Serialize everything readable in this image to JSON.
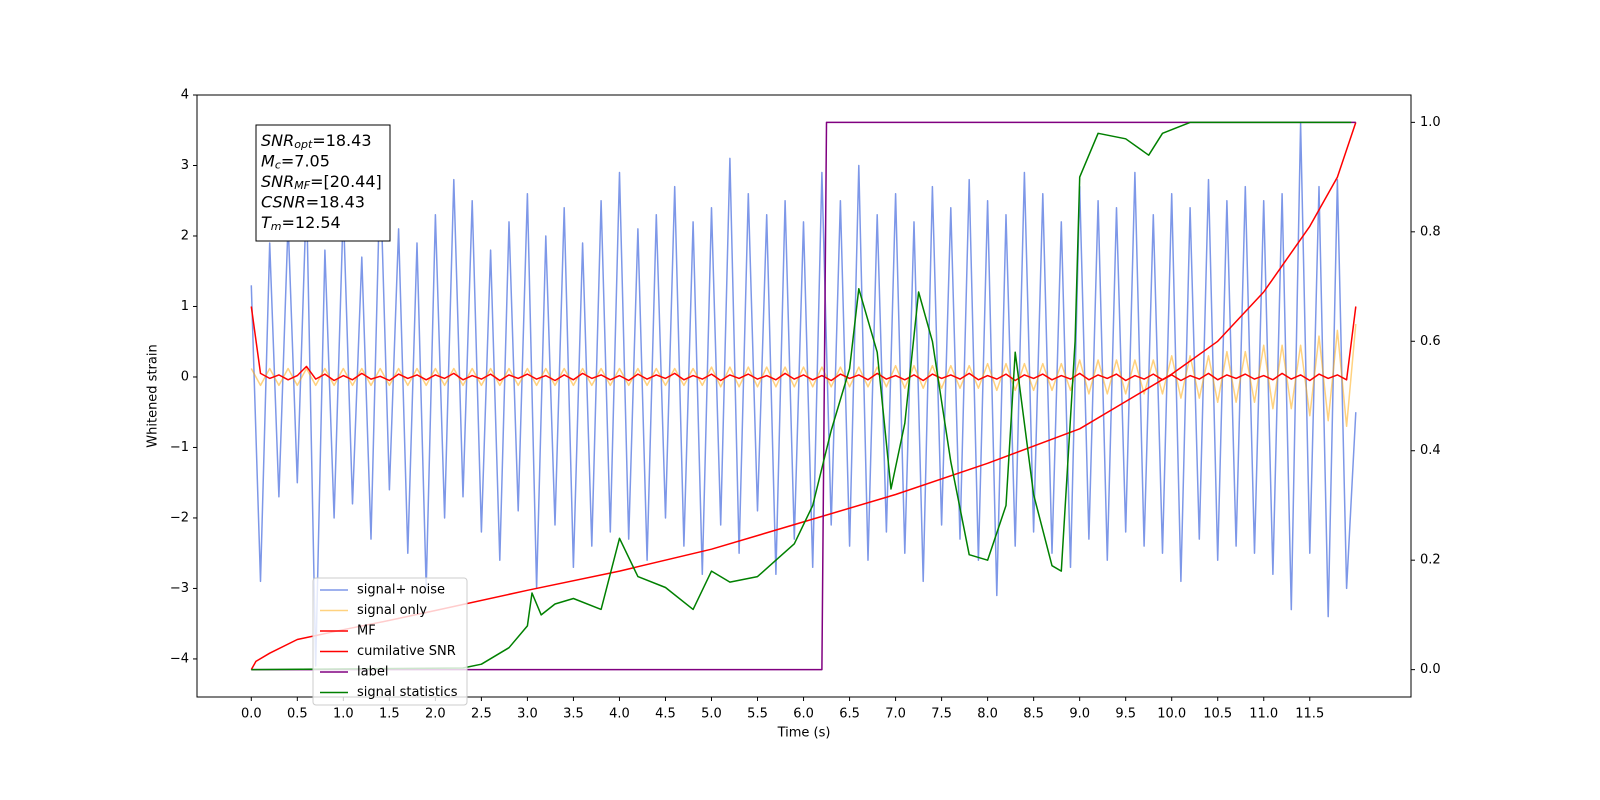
{
  "chart_data": {
    "type": "line",
    "xlabel": "Time (s)",
    "ylabel": "Whitened strain",
    "xlim": [
      -0.59,
      12.6
    ],
    "ylim": [
      -4.54,
      4.0
    ],
    "y2lim": [
      -0.05,
      1.05
    ],
    "xticks": [
      {
        "value": 0,
        "label": "0.0"
      },
      {
        "value": 0.5,
        "label": "0.5"
      },
      {
        "value": 1,
        "label": "1.0"
      },
      {
        "value": 1.5,
        "label": "1.5"
      },
      {
        "value": 2,
        "label": "2.0"
      },
      {
        "value": 2.5,
        "label": "2.5"
      },
      {
        "value": 3,
        "label": "3.0"
      },
      {
        "value": 3.5,
        "label": "3.5"
      },
      {
        "value": 4,
        "label": "4.0"
      },
      {
        "value": 4.5,
        "label": "4.5"
      },
      {
        "value": 5,
        "label": "5.0"
      },
      {
        "value": 5.5,
        "label": "5.5"
      },
      {
        "value": 6,
        "label": "6.0"
      },
      {
        "value": 6.5,
        "label": "6.5"
      },
      {
        "value": 7,
        "label": "7.0"
      },
      {
        "value": 7.5,
        "label": "7.5"
      },
      {
        "value": 8,
        "label": "8.0"
      },
      {
        "value": 8.5,
        "label": "8.5"
      },
      {
        "value": 9,
        "label": "9.0"
      },
      {
        "value": 9.5,
        "label": "9.5"
      },
      {
        "value": 10,
        "label": "10.0"
      },
      {
        "value": 10.5,
        "label": "10.5"
      },
      {
        "value": 11,
        "label": "11.0"
      },
      {
        "value": 11.5,
        "label": "11.5"
      }
    ],
    "yticks": [
      {
        "value": -4,
        "label": "−4"
      },
      {
        "value": -3,
        "label": "−3"
      },
      {
        "value": -2,
        "label": "−2"
      },
      {
        "value": -1,
        "label": "−1"
      },
      0,
      1,
      2,
      3,
      4
    ],
    "y2ticks": [
      {
        "value": 0,
        "label": "0.0"
      },
      {
        "value": 0.2,
        "label": "0.2"
      },
      {
        "value": 0.4,
        "label": "0.4"
      },
      {
        "value": 0.6,
        "label": "0.6"
      },
      {
        "value": 0.8,
        "label": "0.8"
      },
      {
        "value": 1,
        "label": "1.0"
      }
    ],
    "legend": "lower left",
    "grid": false,
    "annotations": [
      {
        "symbol": "SNR",
        "subscript": "opt",
        "text": "=18.43"
      },
      {
        "symbol": "M",
        "subscript": "c",
        "text": "=7.05"
      },
      {
        "symbol": "SNR",
        "subscript": "MF",
        "text": "=[20.44]"
      },
      {
        "symbol": "CSNR",
        "text": "=18.43"
      },
      {
        "symbol": "T",
        "subscript": "m",
        "text": "=12.54"
      }
    ],
    "x": [
      0,
      0.1,
      0.2,
      0.3,
      0.4,
      0.5,
      0.6,
      0.7,
      0.8,
      0.9,
      1,
      1.1,
      1.2,
      1.3,
      1.4,
      1.5,
      1.6,
      1.7,
      1.8,
      1.9,
      2,
      2.1,
      2.2,
      2.3,
      2.4,
      2.5,
      2.6,
      2.7,
      2.8,
      2.9,
      3,
      3.1,
      3.2,
      3.3,
      3.4,
      3.5,
      3.6,
      3.7,
      3.8,
      3.9,
      4,
      4.1,
      4.2,
      4.3,
      4.4,
      4.5,
      4.6,
      4.7,
      4.8,
      4.9,
      5,
      5.1,
      5.2,
      5.3,
      5.4,
      5.5,
      5.6,
      5.7,
      5.8,
      5.9,
      6,
      6.1,
      6.2,
      6.3,
      6.4,
      6.5,
      6.6,
      6.7,
      6.8,
      6.9,
      7,
      7.1,
      7.2,
      7.3,
      7.4,
      7.5,
      7.6,
      7.7,
      7.8,
      7.9,
      8,
      8.1,
      8.2,
      8.3,
      8.4,
      8.5,
      8.6,
      8.7,
      8.8,
      8.9,
      9,
      9.1,
      9.2,
      9.3,
      9.4,
      9.5,
      9.6,
      9.7,
      9.8,
      9.9,
      10,
      10.1,
      10.2,
      10.3,
      10.4,
      10.5,
      10.6,
      10.7,
      10.8,
      10.9,
      11,
      11.1,
      11.2,
      11.3,
      11.4,
      11.5,
      11.6,
      11.7,
      11.8,
      11.9,
      12
    ],
    "series": [
      {
        "name": "signal+ noise",
        "color": "#6f8ce6",
        "opacity": 0.9,
        "values": [
          1.3,
          -2.9,
          1.9,
          -1.7,
          2.2,
          -1.5,
          2.6,
          -4.1,
          1.8,
          -2.0,
          2.4,
          -1.8,
          1.7,
          -2.3,
          2.9,
          -1.6,
          2.1,
          -2.5,
          1.9,
          -3.0,
          2.3,
          -2.0,
          2.8,
          -1.7,
          2.5,
          -2.2,
          1.8,
          -2.6,
          2.2,
          -1.9,
          2.6,
          -3.0,
          2.0,
          -2.1,
          2.4,
          -2.7,
          1.9,
          -2.4,
          2.5,
          -2.2,
          2.9,
          -2.3,
          2.1,
          -2.6,
          2.3,
          -2.0,
          2.7,
          -2.4,
          2.2,
          -2.8,
          2.4,
          -2.1,
          3.1,
          -2.5,
          2.6,
          -1.9,
          2.3,
          -2.8,
          2.5,
          -2.3,
          2.2,
          -2.7,
          2.9,
          -2.1,
          2.5,
          -2.4,
          3.0,
          -2.6,
          2.3,
          -2.2,
          2.6,
          -2.5,
          2.2,
          -2.9,
          2.7,
          -2.1,
          2.4,
          -2.3,
          2.8,
          -2.6,
          2.5,
          -3.1,
          2.3,
          -2.4,
          2.9,
          -2.2,
          2.6,
          -2.5,
          2.2,
          -2.7,
          2.7,
          -2.3,
          2.5,
          -2.6,
          2.4,
          -2.2,
          2.9,
          -2.4,
          2.3,
          -2.5,
          2.6,
          -2.9,
          2.4,
          -2.3,
          2.8,
          -2.6,
          2.5,
          -2.4,
          2.7,
          -2.5,
          2.5,
          -2.8,
          2.6,
          -3.3,
          3.6,
          -2.5,
          2.7,
          -3.4,
          2.8,
          -3.0,
          -0.5
        ]
      },
      {
        "name": "signal only",
        "color": "#ffa500",
        "opacity": 0.5,
        "values": [
          0.12,
          -0.12,
          0.12,
          -0.12,
          0.12,
          -0.12,
          0.12,
          -0.12,
          0.12,
          -0.12,
          0.12,
          -0.12,
          0.12,
          -0.12,
          0.12,
          -0.12,
          0.12,
          -0.12,
          0.12,
          -0.12,
          0.12,
          -0.12,
          0.12,
          -0.12,
          0.12,
          -0.12,
          0.12,
          -0.12,
          0.12,
          -0.12,
          0.12,
          -0.12,
          0.12,
          -0.12,
          0.12,
          -0.12,
          0.12,
          -0.12,
          0.12,
          -0.12,
          0.12,
          -0.12,
          0.12,
          -0.12,
          0.12,
          -0.12,
          0.12,
          -0.12,
          0.12,
          -0.12,
          0.14,
          -0.14,
          0.14,
          -0.14,
          0.14,
          -0.14,
          0.14,
          -0.14,
          0.14,
          -0.14,
          0.14,
          -0.14,
          0.14,
          -0.14,
          0.14,
          -0.14,
          0.14,
          -0.14,
          0.14,
          -0.14,
          0.16,
          -0.16,
          0.16,
          -0.16,
          0.16,
          -0.16,
          0.16,
          -0.16,
          0.16,
          -0.16,
          0.19,
          -0.19,
          0.19,
          -0.19,
          0.19,
          -0.19,
          0.19,
          -0.19,
          0.19,
          -0.19,
          0.24,
          -0.24,
          0.24,
          -0.24,
          0.24,
          -0.24,
          0.24,
          -0.24,
          0.24,
          -0.24,
          0.3,
          -0.3,
          0.3,
          -0.3,
          0.3,
          -0.36,
          0.36,
          -0.36,
          0.36,
          -0.36,
          0.45,
          -0.45,
          0.45,
          -0.45,
          0.45,
          -0.55,
          0.58,
          -0.62,
          0.66,
          -0.7,
          0.75
        ]
      },
      {
        "name": "MF",
        "color": "#ff0000",
        "values": [
          1.0,
          0.05,
          -0.02,
          0.03,
          -0.04,
          0.02,
          0.15,
          -0.03,
          0.04,
          -0.05,
          0.02,
          -0.04,
          0.05,
          -0.03,
          0.01,
          -0.05,
          0.04,
          -0.02,
          0.03,
          -0.04,
          0.03,
          -0.02,
          0.05,
          -0.04,
          0.02,
          -0.03,
          0.04,
          -0.05,
          0.03,
          -0.02,
          0.04,
          -0.03,
          0.02,
          -0.05,
          0.03,
          -0.04,
          0.05,
          -0.02,
          0.03,
          -0.04,
          0.02,
          -0.05,
          0.04,
          -0.03,
          0.03,
          -0.02,
          0.05,
          -0.04,
          0.02,
          -0.03,
          0.04,
          -0.05,
          0.03,
          -0.02,
          0.04,
          -0.03,
          0.02,
          -0.04,
          0.05,
          -0.03,
          0.03,
          -0.04,
          0.02,
          -0.05,
          0.04,
          -0.02,
          0.03,
          -0.04,
          0.05,
          -0.03,
          0.02,
          -0.04,
          0.03,
          -0.05,
          0.04,
          -0.02,
          0.03,
          -0.03,
          0.05,
          -0.04,
          0.02,
          -0.03,
          0.04,
          -0.05,
          0.03,
          -0.02,
          0.04,
          -0.04,
          0.02,
          -0.03,
          0.05,
          -0.04,
          0.03,
          -0.02,
          0.04,
          -0.05,
          0.02,
          -0.03,
          0.04,
          -0.04,
          0.03,
          -0.05,
          0.02,
          -0.03,
          0.05,
          -0.04,
          0.03,
          -0.02,
          0.04,
          -0.03,
          0.02,
          -0.04,
          0.05,
          -0.03,
          0.03,
          -0.05,
          0.04,
          -0.02,
          0.03,
          -0.04,
          1.0
        ]
      },
      {
        "name": "cumilative SNR",
        "color": "#ff0000",
        "axis": "y2",
        "x": [
          0,
          0.05,
          0.2,
          0.5,
          1,
          1.5,
          2,
          3,
          4,
          5,
          6,
          7,
          8,
          9,
          9.5,
          10,
          10.5,
          11,
          11.5,
          11.8,
          12
        ],
        "values": [
          0,
          0.015,
          0.03,
          0.055,
          0.073,
          0.09,
          0.108,
          0.145,
          0.18,
          0.22,
          0.27,
          0.32,
          0.377,
          0.44,
          0.49,
          0.54,
          0.6,
          0.69,
          0.81,
          0.9,
          1.0
        ]
      },
      {
        "name": "label",
        "color": "#800080",
        "axis": "y2",
        "x": [
          0,
          6.2,
          6.25,
          12
        ],
        "values": [
          0,
          0,
          1,
          1
        ]
      },
      {
        "name": "signal statistics",
        "color": "#008000",
        "axis": "y2",
        "x": [
          0,
          2.3,
          2.5,
          2.8,
          3.0,
          3.05,
          3.15,
          3.3,
          3.5,
          3.8,
          4.0,
          4.2,
          4.5,
          4.8,
          5.0,
          5.2,
          5.5,
          5.7,
          5.9,
          6.1,
          6.3,
          6.5,
          6.6,
          6.8,
          6.95,
          7.1,
          7.25,
          7.4,
          7.6,
          7.8,
          8.0,
          8.2,
          8.3,
          8.5,
          8.7,
          8.8,
          8.95,
          9.0,
          9.2,
          9.5,
          9.75,
          9.9,
          10.2,
          11.95
        ],
        "values": [
          0,
          0.003,
          0.01,
          0.04,
          0.08,
          0.14,
          0.1,
          0.12,
          0.13,
          0.11,
          0.24,
          0.17,
          0.15,
          0.11,
          0.18,
          0.16,
          0.17,
          0.2,
          0.23,
          0.3,
          0.437,
          0.55,
          0.696,
          0.58,
          0.33,
          0.45,
          0.69,
          0.6,
          0.38,
          0.21,
          0.2,
          0.3,
          0.58,
          0.32,
          0.19,
          0.18,
          0.6,
          0.9,
          0.98,
          0.97,
          0.94,
          0.98,
          1.0,
          1.0
        ]
      }
    ]
  }
}
